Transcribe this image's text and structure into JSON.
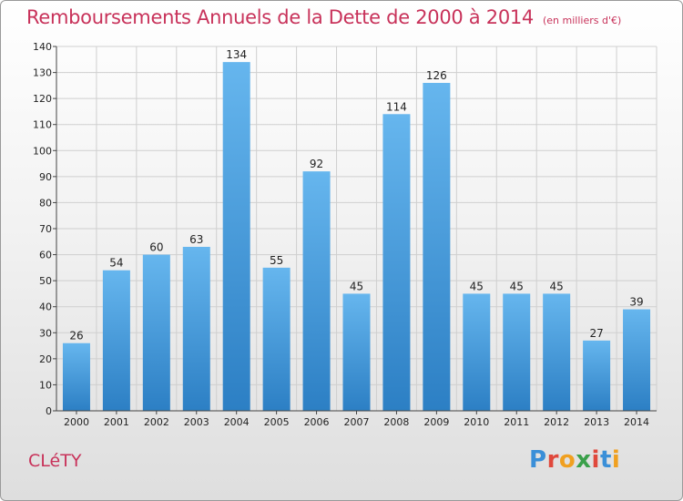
{
  "header": {
    "title": "Remboursements Annuels de la Dette de 2000 à 2014",
    "unit": "(en milliers d'€)"
  },
  "footer": {
    "city": "CLéTY",
    "logo": [
      "P",
      "r",
      "o",
      "x",
      "i",
      "t",
      "i"
    ],
    "logo_colors": [
      "#3a8fd8",
      "#e0483c",
      "#f0a020",
      "#3aa04a",
      "#e0483c",
      "#3a8fd8",
      "#f0a020"
    ]
  },
  "colors": {
    "bar_top": "#66b6ee",
    "bar_bottom": "#2c7fc4",
    "grid": "#cfcfcf",
    "title": "#c8325a"
  },
  "chart_data": {
    "type": "bar",
    "title": "Remboursements Annuels de la Dette de 2000 à 2014",
    "xlabel": "",
    "ylabel": "",
    "ylim": [
      0,
      140
    ],
    "yticks": [
      0,
      10,
      20,
      30,
      40,
      50,
      60,
      70,
      80,
      90,
      100,
      110,
      120,
      130,
      140
    ],
    "grid": true,
    "categories": [
      "2000",
      "2001",
      "2002",
      "2003",
      "2004",
      "2005",
      "2006",
      "2007",
      "2008",
      "2009",
      "2010",
      "2011",
      "2012",
      "2013",
      "2014"
    ],
    "values": [
      26,
      54,
      60,
      63,
      134,
      55,
      92,
      45,
      114,
      126,
      45,
      45,
      45,
      27,
      39
    ]
  }
}
